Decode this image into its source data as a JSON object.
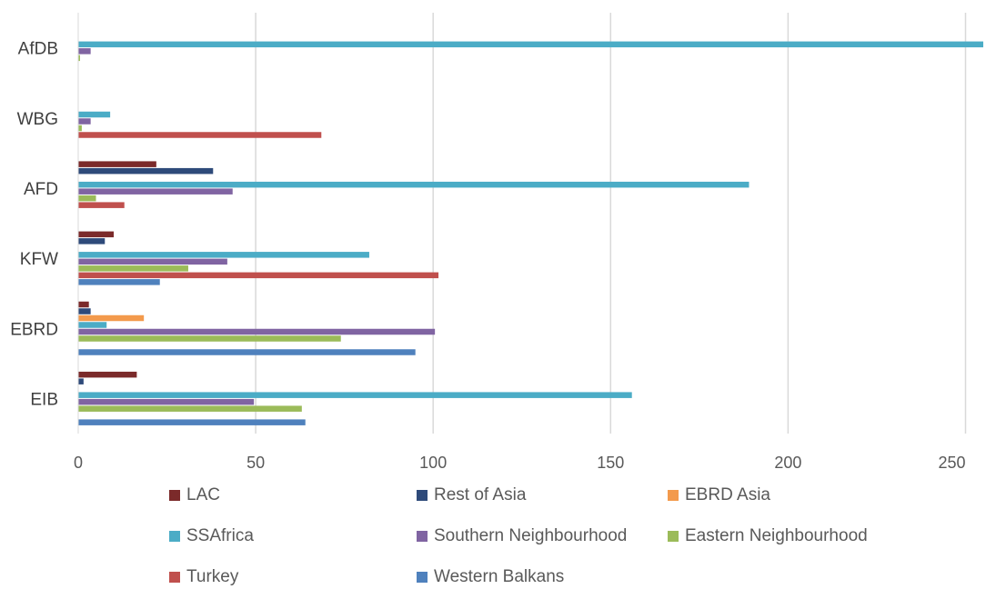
{
  "chart_data": {
    "type": "bar",
    "orientation": "horizontal",
    "categories": [
      "AfDB",
      "WBG",
      "AFD",
      "KFW",
      "EBRD",
      "EIB"
    ],
    "x_ticks": [
      "0",
      "50",
      "100",
      "150",
      "200",
      "250"
    ],
    "xlim": [
      0,
      255
    ],
    "grid": "vertical",
    "legend_position": "bottom",
    "series": [
      {
        "name": "LAC",
        "color": "#7b2a2a",
        "values": [
          0,
          0,
          22,
          10,
          3,
          16.5
        ]
      },
      {
        "name": "Rest of Asia",
        "color": "#2e4a7a",
        "values": [
          0,
          0,
          38,
          7.5,
          3.5,
          1.5
        ]
      },
      {
        "name": "EBRD Asia",
        "color": "#f39a4c",
        "values": [
          0,
          0,
          0,
          0,
          18.5,
          0
        ]
      },
      {
        "name": "SSAfrica",
        "color": "#4bacc6",
        "values": [
          255,
          9,
          189,
          82,
          8,
          156
        ]
      },
      {
        "name": "Southern Neighbourhood",
        "color": "#8064a2",
        "values": [
          3.5,
          3.5,
          43.5,
          42,
          100.5,
          49.5
        ]
      },
      {
        "name": "Eastern Neighbourhood",
        "color": "#9bbb59",
        "values": [
          0.5,
          1,
          5,
          31,
          74,
          63
        ]
      },
      {
        "name": "Turkey",
        "color": "#c0504d",
        "values": [
          0,
          68.5,
          13,
          101.5,
          0,
          0
        ]
      },
      {
        "name": "Western Balkans",
        "color": "#4f81bd",
        "values": [
          0,
          0,
          0,
          23,
          95,
          64
        ]
      }
    ],
    "legend_rows": [
      [
        "LAC",
        "Rest of Asia",
        "EBRD Asia"
      ],
      [
        "SSAfrica",
        "Southern Neighbourhood",
        "Eastern Neighbourhood"
      ],
      [
        "Turkey",
        "Western Balkans"
      ]
    ]
  }
}
